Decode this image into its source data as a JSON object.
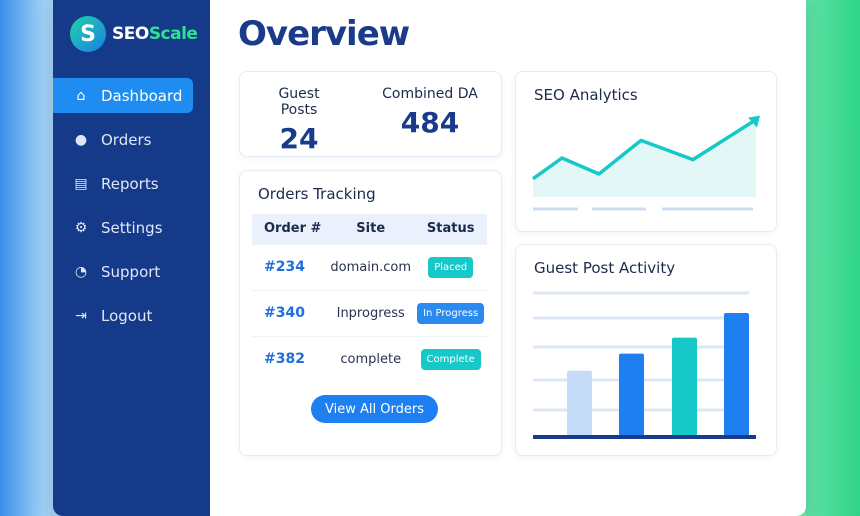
{
  "brand": {
    "logo_letter": "S",
    "name_a": "SEO",
    "name_b": "Scale"
  },
  "sidebar": {
    "items": [
      {
        "label": "Dashboard",
        "icon": "home-icon",
        "active": true
      },
      {
        "label": "Orders",
        "icon": "user-icon"
      },
      {
        "label": "Reports",
        "icon": "reports-icon"
      },
      {
        "label": "Settings",
        "icon": "gear-icon"
      },
      {
        "label": "Support",
        "icon": "support-icon"
      },
      {
        "label": "Logout",
        "icon": "logout-icon"
      }
    ]
  },
  "page_title": "Overview",
  "stats": [
    {
      "label": "Guest Posts",
      "value": "24"
    },
    {
      "label": "Combined DA",
      "value": "484"
    }
  ],
  "orders": {
    "title": "Orders Tracking",
    "headers": [
      "Order #",
      "Site",
      "Status"
    ],
    "rows": [
      {
        "order": "#234",
        "site": "domain.com",
        "status": "Placed",
        "color": "#16c8c8"
      },
      {
        "order": "#340",
        "site": "Inprogress",
        "status": "In Progress",
        "color": "#2a8af0"
      },
      {
        "order": "#382",
        "site": "complete",
        "status": "Complete",
        "color": "#16c8c8"
      }
    ],
    "button": "View All Orders"
  },
  "chart_data": [
    {
      "type": "line",
      "title": "SEO Analytics",
      "values": [
        14,
        40,
        20,
        62,
        38,
        88
      ],
      "color": "#16c8c8"
    },
    {
      "type": "bar",
      "title": "Guest Post Activity",
      "values": [
        53,
        67,
        80,
        100
      ],
      "colors": [
        "#c5dcf8",
        "#1e7ff0",
        "#16c8c8",
        "#1e7ff0"
      ]
    }
  ]
}
